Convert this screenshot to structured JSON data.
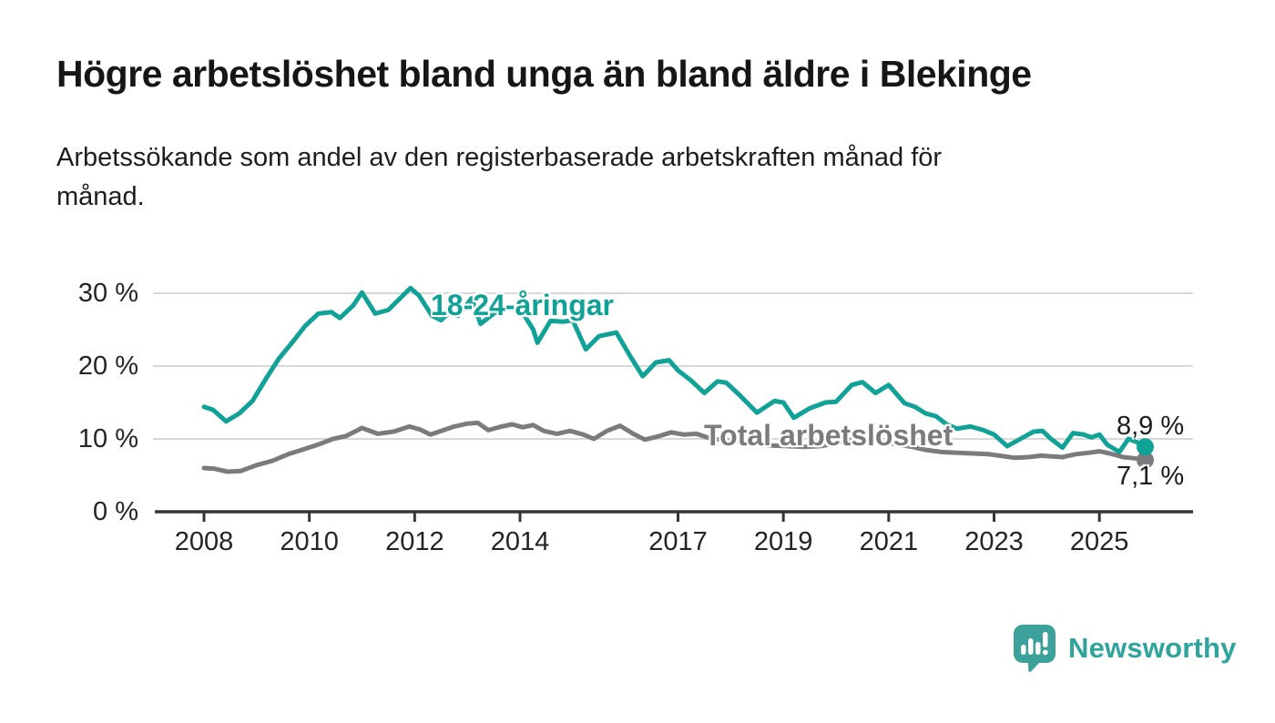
{
  "header": {
    "title": "Högre arbetslöshet bland unga än bland äldre i Blekinge",
    "subtitle_line1": "Arbetssökande som andel av den registerbaserade arbetskraften månad för",
    "subtitle_line2": "månad."
  },
  "chart_data": {
    "type": "line",
    "title": "Högre arbetslöshet bland unga än bland äldre i Blekinge",
    "subtitle": "Arbetssökande som andel av den registerbaserade arbetskraften månad för månad.",
    "unit": "%",
    "grid": "horizontal",
    "legend": "inline-labels",
    "colors": {
      "accent_teal": "#10a296",
      "neutral_gray": "#7b7b7e",
      "gridline": "#d8d8d8",
      "axis": "#333638",
      "text": "#1c1c1e"
    },
    "x_axis": {
      "range": [
        2007.0,
        2026.8
      ],
      "ticks": [
        2008,
        2010,
        2012,
        2014,
        2017,
        2019,
        2021,
        2023,
        2025
      ],
      "tick_labels": [
        "2008",
        "2010",
        "2012",
        "2014",
        "2017",
        "2019",
        "2021",
        "2023",
        "2025"
      ]
    },
    "y_axis": {
      "range": [
        0,
        31.5
      ],
      "ticks": [
        0,
        10,
        20,
        30
      ],
      "tick_labels": [
        "0 %",
        "10 %",
        "20 %",
        "30 %"
      ]
    },
    "series": [
      {
        "name": "18-24-åringar",
        "color": "#10a296",
        "end_label": "8,9 %",
        "end_value": 8.9,
        "points": [
          [
            2008.0,
            14.4
          ],
          [
            2008.17,
            14.0
          ],
          [
            2008.42,
            12.4
          ],
          [
            2008.67,
            13.5
          ],
          [
            2008.92,
            15.2
          ],
          [
            2009.17,
            18.2
          ],
          [
            2009.42,
            21.0
          ],
          [
            2009.67,
            23.2
          ],
          [
            2009.92,
            25.5
          ],
          [
            2010.17,
            27.2
          ],
          [
            2010.42,
            27.4
          ],
          [
            2010.58,
            26.6
          ],
          [
            2010.83,
            28.3
          ],
          [
            2011.0,
            30.1
          ],
          [
            2011.25,
            27.2
          ],
          [
            2011.5,
            27.7
          ],
          [
            2011.75,
            29.5
          ],
          [
            2011.92,
            30.7
          ],
          [
            2012.08,
            29.7
          ],
          [
            2012.33,
            26.9
          ],
          [
            2012.5,
            26.3
          ],
          [
            2012.67,
            27.4
          ],
          [
            2012.83,
            26.9
          ],
          [
            2013.08,
            29.3
          ],
          [
            2013.25,
            25.8
          ],
          [
            2013.5,
            27.2
          ],
          [
            2013.75,
            28.2
          ],
          [
            2013.92,
            27.7
          ],
          [
            2014.08,
            27.0
          ],
          [
            2014.25,
            25.0
          ],
          [
            2014.33,
            23.2
          ],
          [
            2014.58,
            26.2
          ],
          [
            2014.83,
            26.1
          ],
          [
            2015.0,
            26.3
          ],
          [
            2015.25,
            22.3
          ],
          [
            2015.5,
            24.1
          ],
          [
            2015.83,
            24.6
          ],
          [
            2016.08,
            21.5
          ],
          [
            2016.33,
            18.6
          ],
          [
            2016.58,
            20.5
          ],
          [
            2016.83,
            20.8
          ],
          [
            2017.0,
            19.4
          ],
          [
            2017.25,
            18.0
          ],
          [
            2017.5,
            16.3
          ],
          [
            2017.75,
            17.9
          ],
          [
            2017.92,
            17.7
          ],
          [
            2018.17,
            16.0
          ],
          [
            2018.5,
            13.6
          ],
          [
            2018.83,
            15.2
          ],
          [
            2019.0,
            15.0
          ],
          [
            2019.2,
            12.9
          ],
          [
            2019.5,
            14.2
          ],
          [
            2019.8,
            15.0
          ],
          [
            2020.0,
            15.1
          ],
          [
            2020.3,
            17.4
          ],
          [
            2020.5,
            17.8
          ],
          [
            2020.75,
            16.3
          ],
          [
            2021.0,
            17.4
          ],
          [
            2021.3,
            14.9
          ],
          [
            2021.5,
            14.4
          ],
          [
            2021.7,
            13.5
          ],
          [
            2021.9,
            13.1
          ],
          [
            2022.1,
            12.0
          ],
          [
            2022.3,
            11.4
          ],
          [
            2022.55,
            11.7
          ],
          [
            2022.8,
            11.2
          ],
          [
            2023.0,
            10.6
          ],
          [
            2023.25,
            9.0
          ],
          [
            2023.5,
            10.0
          ],
          [
            2023.75,
            11.0
          ],
          [
            2023.92,
            11.1
          ],
          [
            2024.08,
            10.0
          ],
          [
            2024.3,
            8.8
          ],
          [
            2024.5,
            10.8
          ],
          [
            2024.7,
            10.6
          ],
          [
            2024.85,
            10.2
          ],
          [
            2025.0,
            10.6
          ],
          [
            2025.15,
            9.2
          ],
          [
            2025.38,
            8.2
          ],
          [
            2025.55,
            10.0
          ],
          [
            2025.7,
            9.6
          ],
          [
            2025.87,
            8.9
          ]
        ]
      },
      {
        "name": "Total arbetslöshet",
        "color": "#7b7b7e",
        "end_label": "7,1 %",
        "end_value": 7.1,
        "points": [
          [
            2008.0,
            6.0
          ],
          [
            2008.2,
            5.9
          ],
          [
            2008.45,
            5.5
          ],
          [
            2008.7,
            5.6
          ],
          [
            2009.0,
            6.4
          ],
          [
            2009.3,
            7.0
          ],
          [
            2009.6,
            7.9
          ],
          [
            2009.9,
            8.6
          ],
          [
            2010.2,
            9.3
          ],
          [
            2010.45,
            10.0
          ],
          [
            2010.7,
            10.4
          ],
          [
            2011.0,
            11.5
          ],
          [
            2011.3,
            10.7
          ],
          [
            2011.6,
            11.0
          ],
          [
            2011.9,
            11.7
          ],
          [
            2012.1,
            11.3
          ],
          [
            2012.3,
            10.6
          ],
          [
            2012.55,
            11.2
          ],
          [
            2012.75,
            11.7
          ],
          [
            2013.0,
            12.1
          ],
          [
            2013.2,
            12.2
          ],
          [
            2013.4,
            11.2
          ],
          [
            2013.65,
            11.7
          ],
          [
            2013.85,
            12.0
          ],
          [
            2014.05,
            11.6
          ],
          [
            2014.25,
            11.9
          ],
          [
            2014.45,
            11.1
          ],
          [
            2014.7,
            10.7
          ],
          [
            2014.95,
            11.1
          ],
          [
            2015.2,
            10.6
          ],
          [
            2015.4,
            10.0
          ],
          [
            2015.65,
            11.1
          ],
          [
            2015.9,
            11.8
          ],
          [
            2016.15,
            10.7
          ],
          [
            2016.37,
            9.9
          ],
          [
            2016.6,
            10.3
          ],
          [
            2016.87,
            10.9
          ],
          [
            2017.1,
            10.6
          ],
          [
            2017.35,
            10.7
          ],
          [
            2017.6,
            10.1
          ],
          [
            2017.9,
            9.8
          ],
          [
            2018.2,
            9.6
          ],
          [
            2018.5,
            9.3
          ],
          [
            2018.8,
            9.1
          ],
          [
            2019.1,
            9.0
          ],
          [
            2019.4,
            8.9
          ],
          [
            2019.7,
            9.0
          ],
          [
            2020.0,
            9.4
          ],
          [
            2020.3,
            9.9
          ],
          [
            2020.6,
            10.0
          ],
          [
            2020.9,
            9.6
          ],
          [
            2021.2,
            9.2
          ],
          [
            2021.45,
            8.9
          ],
          [
            2021.7,
            8.5
          ],
          [
            2022.0,
            8.2
          ],
          [
            2022.3,
            8.1
          ],
          [
            2022.6,
            8.0
          ],
          [
            2022.9,
            7.9
          ],
          [
            2023.1,
            7.7
          ],
          [
            2023.4,
            7.4
          ],
          [
            2023.65,
            7.5
          ],
          [
            2023.9,
            7.7
          ],
          [
            2024.1,
            7.6
          ],
          [
            2024.3,
            7.5
          ],
          [
            2024.55,
            7.9
          ],
          [
            2024.8,
            8.1
          ],
          [
            2025.0,
            8.3
          ],
          [
            2025.2,
            8.0
          ],
          [
            2025.45,
            7.5
          ],
          [
            2025.65,
            7.35
          ],
          [
            2025.87,
            7.1
          ]
        ]
      }
    ]
  },
  "footer": {
    "brand": "Newsworthy"
  }
}
